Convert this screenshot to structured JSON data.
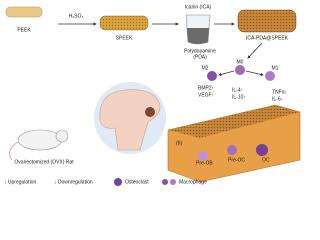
{
  "steps": {
    "peek": "PEEK",
    "acid": "H₂SO₄",
    "speek": "SPEEK",
    "icariin": "Icariin (ICA)",
    "pda_1": "Polydopamine",
    "pda_2": "(PDA)",
    "product": "ICA-PDA@SPEEK"
  },
  "macrophages": {
    "m2": "M2",
    "m0": "M0",
    "m1": "M1"
  },
  "factors": {
    "m2": [
      "BMP2↑",
      "VEGF↑"
    ],
    "m0": [
      "IL-4↑",
      "IL-10↑"
    ],
    "m1": [
      "TNFα↓",
      "IL-6↓"
    ]
  },
  "cells": {
    "pre_ob": "Pre-OB",
    "pre_oc": "Pre-OC",
    "oc": "OC",
    "panel": "(b)"
  },
  "rat": "Ovariectomized (OVX) Rat",
  "legend": {
    "up": "↑ Upregulation",
    "down": "↓ Downregulation",
    "osteoclast": "Osteoclast",
    "macrophage": "Macrophage"
  }
}
